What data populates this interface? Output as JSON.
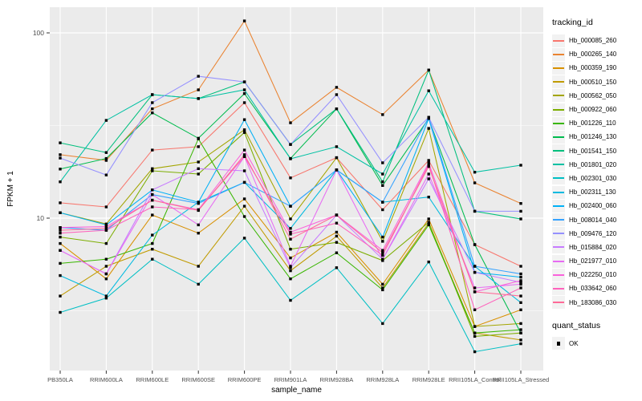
{
  "figure": {
    "background": "#FFFFFF",
    "panel_background": "#EBEBEB",
    "grid_color": "#FFFFFF",
    "axis_text_color": "#4D4D4D",
    "axis_title_color": "#000000",
    "point_color": "#000000"
  },
  "legend": {
    "tracking_title": "tracking_id",
    "quant_title": "quant_status",
    "quant_label": "OK"
  },
  "chart_data": {
    "type": "line",
    "title": "",
    "xlabel": "sample_name",
    "ylabel": "FPKM + 1",
    "y_scale": "log10",
    "y_ticks": [
      10,
      100
    ],
    "ylim": [
      1.4,
      140
    ],
    "grid": true,
    "legend_position": "right",
    "point_marker": "black-square",
    "quant_status": "OK",
    "categories": [
      "PB350LA",
      "RRIM600LA",
      "RRIM600LE",
      "RRIM600SE",
      "RRIM600PE",
      "RRIM901LA",
      "RRIM928BA",
      "RRIM928LA",
      "RRIM928LE",
      "RRII105LA_Control",
      "RRII105LA_Stressed"
    ],
    "series": [
      {
        "name": "Hb_000085_260",
        "color": "#F8766D",
        "values": [
          12.1,
          11.5,
          23.3,
          24.3,
          42.0,
          16.5,
          21.2,
          11.1,
          20.5,
          7.2,
          5.5
        ]
      },
      {
        "name": "Hb_000265_140",
        "color": "#EA8331",
        "values": [
          22.0,
          20.5,
          38.9,
          49.3,
          116.0,
          32.7,
          50.8,
          36.2,
          63.0,
          15.5,
          12.0
        ]
      },
      {
        "name": "Hb_000359_190",
        "color": "#D89000",
        "values": [
          7.3,
          4.7,
          10.4,
          8.3,
          12.7,
          6.1,
          8.4,
          4.4,
          9.9,
          2.6,
          3.2
        ]
      },
      {
        "name": "Hb_000510_150",
        "color": "#C09B00",
        "values": [
          3.8,
          5.5,
          6.8,
          5.5,
          11.6,
          5.2,
          8.0,
          4.2,
          9.4,
          2.4,
          2.2
        ]
      },
      {
        "name": "Hb_000562_050",
        "color": "#A3A500",
        "values": [
          10.7,
          9.3,
          18.5,
          20.1,
          30.0,
          9.9,
          21.2,
          7.5,
          30.5,
          2.6,
          2.7
        ]
      },
      {
        "name": "Hb_000922_060",
        "color": "#7CAE00",
        "values": [
          7.9,
          7.3,
          18.0,
          17.3,
          29.0,
          6.8,
          7.4,
          5.9,
          9.5,
          2.3,
          2.4
        ]
      },
      {
        "name": "Hb_001226_110",
        "color": "#39B600",
        "values": [
          5.7,
          6.0,
          7.3,
          26.8,
          10.2,
          4.7,
          6.5,
          4.1,
          9.2,
          2.4,
          2.5
        ]
      },
      {
        "name": "Hb_001246_130",
        "color": "#00BB4E",
        "values": [
          18.4,
          21.0,
          37.0,
          27.0,
          47.0,
          21.0,
          38.9,
          15.0,
          34.5,
          7.2,
          2.4
        ]
      },
      {
        "name": "Hb_001541_150",
        "color": "#00BF7D",
        "values": [
          25.5,
          22.6,
          46.4,
          44.2,
          54.4,
          25.0,
          38.9,
          15.7,
          63.0,
          10.9,
          9.9
        ]
      },
      {
        "name": "Hb_001801_020",
        "color": "#00C1A3",
        "values": [
          15.7,
          33.7,
          46.4,
          44.2,
          49.3,
          20.9,
          24.3,
          17.3,
          48.7,
          17.7,
          19.3
        ]
      },
      {
        "name": "Hb_002301_030",
        "color": "#00BFC4",
        "values": [
          3.1,
          3.7,
          6.0,
          4.4,
          7.8,
          3.6,
          5.4,
          2.7,
          5.8,
          1.9,
          2.1
        ]
      },
      {
        "name": "Hb_002311_130",
        "color": "#00BAE0",
        "values": [
          4.9,
          3.8,
          8.1,
          12.2,
          15.6,
          8.8,
          18.2,
          12.2,
          13.0,
          5.5,
          3.5
        ]
      },
      {
        "name": "Hb_002400_060",
        "color": "#00B0F6",
        "values": [
          10.7,
          9.2,
          14.2,
          12.2,
          34.0,
          11.6,
          18.2,
          7.9,
          34.5,
          5.1,
          4.8
        ]
      },
      {
        "name": "Hb_008014_040",
        "color": "#35A2FF",
        "values": [
          8.9,
          8.6,
          13.4,
          12.0,
          15.6,
          11.6,
          18.2,
          12.2,
          35.0,
          5.5,
          5.0
        ]
      },
      {
        "name": "Hb_009476_120",
        "color": "#9590FF",
        "values": [
          21.1,
          17.1,
          42.0,
          58.3,
          54.4,
          25.0,
          46.4,
          19.9,
          35.0,
          10.9,
          10.9
        ]
      },
      {
        "name": "Hb_015884_020",
        "color": "#C77CFF",
        "values": [
          6.7,
          5.0,
          14.2,
          18.5,
          18.0,
          5.4,
          10.4,
          6.0,
          16.3,
          5.1,
          4.5
        ]
      },
      {
        "name": "Hb_021977_010",
        "color": "#E76BF3",
        "values": [
          6.7,
          5.0,
          13.4,
          9.2,
          21.5,
          5.5,
          18.2,
          6.0,
          17.3,
          4.2,
          4.4
        ]
      },
      {
        "name": "Hb_022250_010",
        "color": "#FA62DB",
        "values": [
          8.9,
          9.0,
          12.5,
          11.1,
          23.3,
          8.4,
          10.4,
          6.7,
          19.9,
          4.0,
          4.6
        ]
      },
      {
        "name": "Hb_033642_060",
        "color": "#FF62BC",
        "values": [
          8.3,
          8.6,
          11.5,
          11.1,
          21.5,
          8.2,
          9.4,
          6.3,
          19.5,
          3.2,
          4.2
        ]
      },
      {
        "name": "Hb_183086_030",
        "color": "#FF6A98",
        "values": [
          8.6,
          8.8,
          12.5,
          11.0,
          22.0,
          7.7,
          10.4,
          6.5,
          19.0,
          4.0,
          3.8
        ]
      }
    ]
  }
}
